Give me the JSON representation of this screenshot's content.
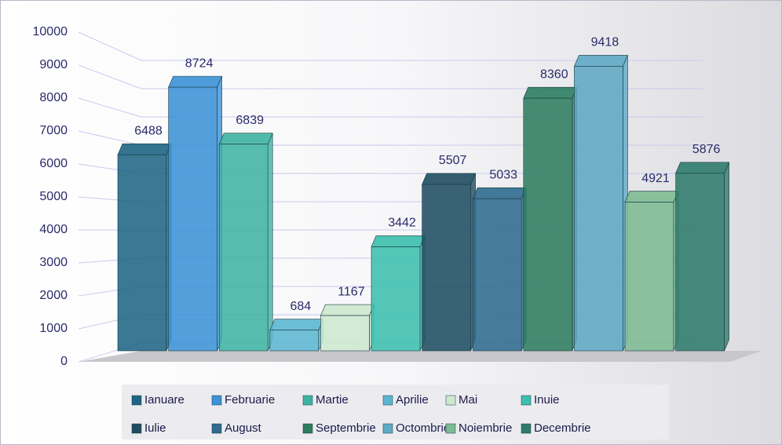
{
  "chart_data": {
    "type": "bar3d",
    "categories": [
      "Ianuare",
      "Februarie",
      "Martie",
      "Aprilie",
      "Mai",
      "Inuie",
      "Iulie",
      "August",
      "Septembrie",
      "Octombrie",
      "Noiembrie",
      "Decembrie"
    ],
    "values": [
      6488,
      8724,
      6839,
      684,
      1167,
      3442,
      5507,
      5033,
      8360,
      9418,
      4921,
      5876
    ],
    "colors": [
      "#1f6584",
      "#3b92d6",
      "#3fb3a2",
      "#5cb6d2",
      "#cde8cf",
      "#3cbfae",
      "#1f4e62",
      "#2f6b8e",
      "#2e7d60",
      "#5fa9c4",
      "#7dbb93",
      "#2f7b6c"
    ],
    "ylim": [
      0,
      10000
    ],
    "yticks": [
      0,
      1000,
      2000,
      3000,
      4000,
      5000,
      6000,
      7000,
      8000,
      9000,
      10000
    ],
    "grid": true,
    "legend": "bottom"
  }
}
